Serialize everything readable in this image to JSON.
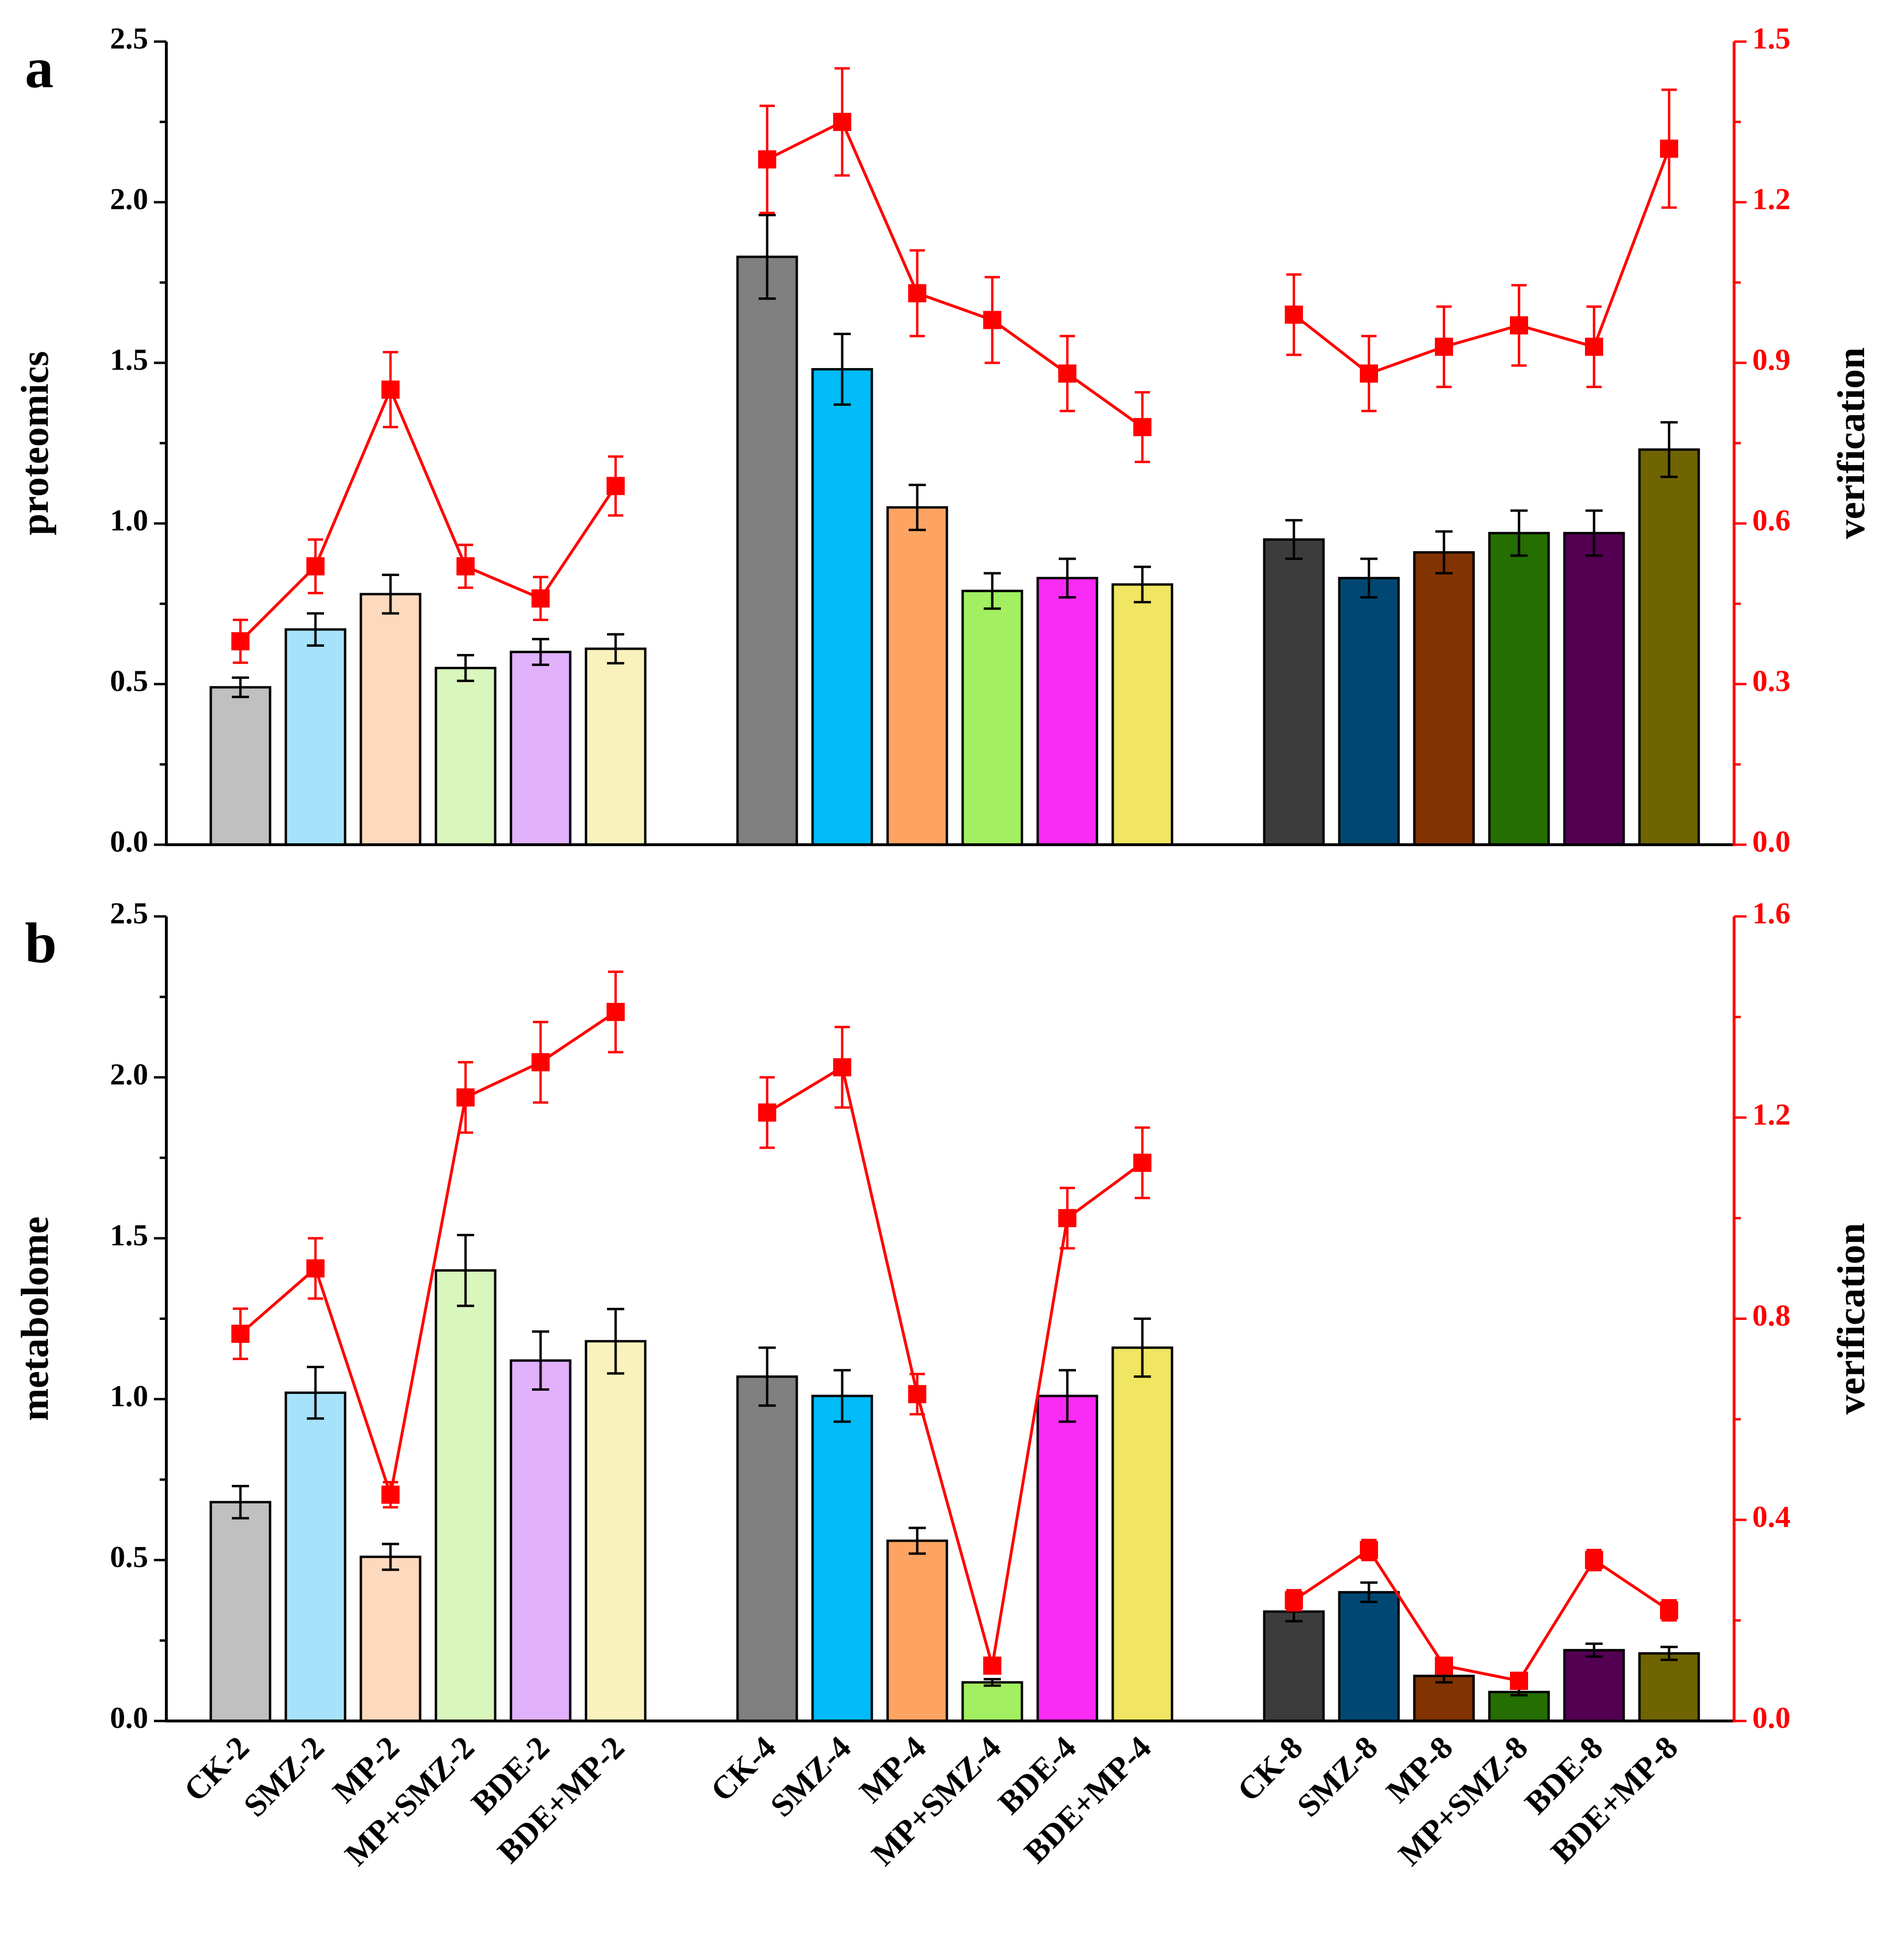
{
  "categories": [
    "CK-2",
    "SMZ-2",
    "MP-2",
    "MP+SMZ-2",
    "BDE-2",
    "BDE+MP-2",
    "CK-4",
    "SMZ-4",
    "MP-4",
    "MP+SMZ-4",
    "BDE-4",
    "BDE+MP-4",
    "CK-8",
    "SMZ-8",
    "MP-8",
    "MP+SMZ-8",
    "BDE-8",
    "BDE+MP-8"
  ],
  "bar_colors": [
    "#c0c0c0",
    "#a6e3fb",
    "#fdd9bd",
    "#d9f6bd",
    "#e1b1fb",
    "#f9f2bd",
    "#808080",
    "#00bbf7",
    "#fea462",
    "#a2f061",
    "#f92bf4",
    "#f0e661",
    "#3c3c3c",
    "#004873",
    "#813301",
    "#256e01",
    "#530053",
    "#6f6400"
  ],
  "bar_edge_color": "#000000",
  "errorbar_color": "#000000",
  "line_color": "#ff0000",
  "chart_data": [
    {
      "type": "bar",
      "panel_label": "a",
      "xlabel": "",
      "ylabel": "proteomics",
      "ylim": [
        0,
        2.5
      ],
      "yticks": [
        "0.0",
        "0.5",
        "1.0",
        "1.5",
        "2.0",
        "2.5"
      ],
      "y2label": "verification",
      "y2lim": [
        0,
        1.5
      ],
      "y2ticks": [
        "0.0",
        "0.3",
        "0.6",
        "0.9",
        "1.2",
        "1.5"
      ],
      "categories": [
        "CK-2",
        "SMZ-2",
        "MP-2",
        "MP+SMZ-2",
        "BDE-2",
        "BDE+MP-2",
        "CK-4",
        "SMZ-4",
        "MP-4",
        "MP+SMZ-4",
        "BDE-4",
        "BDE+MP-4",
        "CK-8",
        "SMZ-8",
        "MP-8",
        "MP+SMZ-8",
        "BDE-8",
        "BDE+MP-8"
      ],
      "series": [
        {
          "name": "proteomics",
          "axis": "left",
          "values": [
            0.49,
            0.67,
            0.78,
            0.55,
            0.6,
            0.61,
            1.83,
            1.48,
            1.05,
            0.79,
            0.83,
            0.81,
            0.95,
            0.83,
            0.91,
            0.97,
            0.97,
            1.23
          ],
          "errors": [
            0.03,
            0.05,
            0.06,
            0.04,
            0.04,
            0.045,
            0.13,
            0.11,
            0.07,
            0.055,
            0.06,
            0.055,
            0.06,
            0.06,
            0.065,
            0.07,
            0.07,
            0.085
          ]
        },
        {
          "name": "verification",
          "axis": "right",
          "groups": [
            [
              0,
              5
            ],
            [
              6,
              11
            ],
            [
              12,
              17
            ]
          ],
          "values": [
            0.38,
            0.52,
            0.85,
            0.52,
            0.46,
            0.67,
            1.28,
            1.35,
            1.03,
            0.98,
            0.88,
            0.78,
            0.99,
            0.88,
            0.93,
            0.97,
            0.93,
            1.3
          ],
          "errors": [
            0.04,
            0.05,
            0.07,
            0.04,
            0.04,
            0.055,
            0.1,
            0.1,
            0.08,
            0.08,
            0.07,
            0.065,
            0.075,
            0.07,
            0.075,
            0.075,
            0.075,
            0.11
          ]
        }
      ]
    },
    {
      "type": "bar",
      "panel_label": "b",
      "xlabel": "",
      "ylabel": "metabolome",
      "ylim": [
        0,
        2.5
      ],
      "yticks": [
        "0.0",
        "0.5",
        "1.0",
        "1.5",
        "2.0",
        "2.5"
      ],
      "y2label": "verification",
      "y2lim": [
        0,
        1.6
      ],
      "y2ticks": [
        "0.0",
        "0.4",
        "0.8",
        "1.2",
        "1.6"
      ],
      "categories": [
        "CK-2",
        "SMZ-2",
        "MP-2",
        "MP+SMZ-2",
        "BDE-2",
        "BDE+MP-2",
        "CK-4",
        "SMZ-4",
        "MP-4",
        "MP+SMZ-4",
        "BDE-4",
        "BDE+MP-4",
        "CK-8",
        "SMZ-8",
        "MP-8",
        "MP+SMZ-8",
        "BDE-8",
        "BDE+MP-8"
      ],
      "series": [
        {
          "name": "metabolome",
          "axis": "left",
          "values": [
            0.68,
            1.02,
            0.51,
            1.4,
            1.12,
            1.18,
            1.07,
            1.01,
            0.56,
            0.12,
            1.01,
            1.16,
            0.34,
            0.4,
            0.14,
            0.09,
            0.22,
            0.21
          ],
          "errors": [
            0.05,
            0.08,
            0.04,
            0.11,
            0.09,
            0.1,
            0.09,
            0.08,
            0.04,
            0.01,
            0.08,
            0.09,
            0.03,
            0.03,
            0.02,
            0.01,
            0.02,
            0.02
          ]
        },
        {
          "name": "verification",
          "axis": "right",
          "groups": [
            [
              0,
              5
            ],
            [
              6,
              11
            ],
            [
              12,
              17
            ]
          ],
          "values": [
            0.77,
            0.9,
            0.45,
            1.24,
            1.31,
            1.41,
            1.21,
            1.3,
            0.65,
            0.11,
            1.0,
            1.11,
            0.24,
            0.34,
            0.11,
            0.08,
            0.32,
            0.22
          ],
          "errors": [
            0.05,
            0.06,
            0.025,
            0.07,
            0.08,
            0.08,
            0.07,
            0.08,
            0.04,
            0.01,
            0.06,
            0.07,
            0.02,
            0.02,
            0.01,
            0.01,
            0.02,
            0.02
          ]
        }
      ]
    }
  ]
}
